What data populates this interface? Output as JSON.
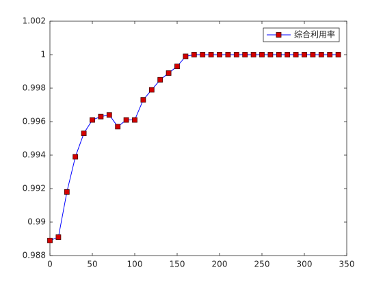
{
  "chart_data": {
    "type": "line",
    "x": [
      0,
      10,
      20,
      30,
      40,
      50,
      60,
      70,
      80,
      90,
      100,
      110,
      120,
      130,
      140,
      150,
      160,
      170,
      180,
      190,
      200,
      210,
      220,
      230,
      240,
      250,
      260,
      270,
      280,
      290,
      300,
      310,
      320,
      330,
      340
    ],
    "series": [
      {
        "name": "综合利用率",
        "color": "#0000ff",
        "marker_color": "#d40000",
        "values": [
          0.9889,
          0.9891,
          0.9918,
          0.9939,
          0.9953,
          0.9961,
          0.9963,
          0.9964,
          0.9957,
          0.9961,
          0.9961,
          0.9973,
          0.9979,
          0.9985,
          0.9989,
          0.9993,
          0.9999,
          1,
          1,
          1,
          1,
          1,
          1,
          1,
          1,
          1,
          1,
          1,
          1,
          1,
          1,
          1,
          1,
          1,
          1
        ]
      }
    ],
    "xlim": [
      0,
      350
    ],
    "xticks": [
      0,
      50,
      100,
      150,
      200,
      250,
      300,
      350
    ],
    "ylim": [
      0.988,
      1.002
    ],
    "yticks": [
      0.988,
      0.99,
      0.992,
      0.994,
      0.996,
      0.998,
      1,
      1.002
    ],
    "legend": "top-right",
    "grid": false
  }
}
